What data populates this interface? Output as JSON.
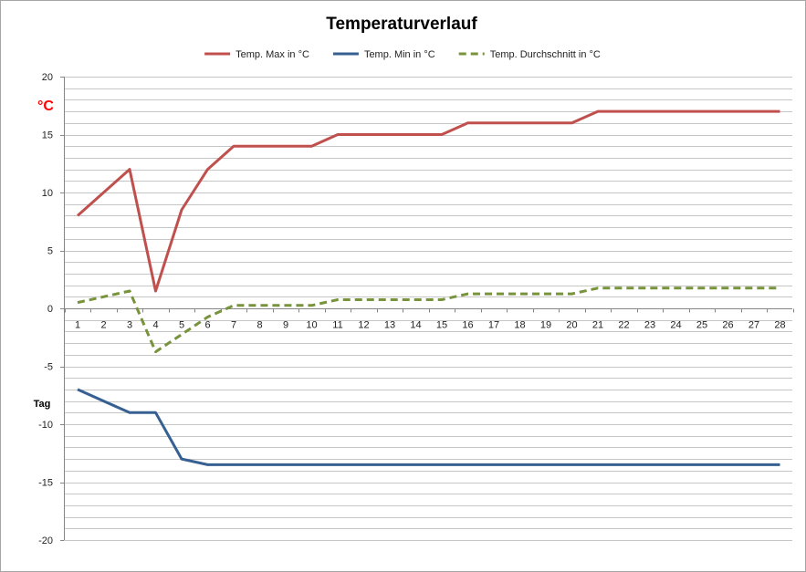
{
  "chart_data": {
    "type": "line",
    "title": "Temperaturverlauf",
    "ylabel": "°C",
    "xlabel": "Tag",
    "ylim": [
      -20,
      20
    ],
    "yticks": [
      20,
      15,
      10,
      5,
      0,
      -5,
      -10,
      -15,
      -20
    ],
    "grid": "horizontal, every 1 unit",
    "legend_position": "top",
    "x": [
      "1",
      "2",
      "3",
      "4",
      "5",
      "6",
      "7",
      "8",
      "9",
      "10",
      "11",
      "12",
      "13",
      "14",
      "15",
      "16",
      "17",
      "18",
      "19",
      "20",
      "21",
      "22",
      "23",
      "24",
      "25",
      "26",
      "27",
      "28"
    ],
    "series": [
      {
        "name": "Temp. Max in °C",
        "color": "#c0504d",
        "dash": "solid",
        "values": [
          8,
          10,
          12,
          1.5,
          8.5,
          12,
          14,
          14,
          14,
          14,
          15,
          15,
          15,
          15,
          15,
          16,
          16,
          16,
          16,
          16,
          17,
          17,
          17,
          17,
          17,
          17,
          17,
          17
        ]
      },
      {
        "name": "Temp. Min in °C",
        "color": "#376092",
        "dash": "solid",
        "values": [
          -7,
          -8,
          -9,
          -9,
          -13,
          -13.5,
          -13.5,
          -13.5,
          -13.5,
          -13.5,
          -13.5,
          -13.5,
          -13.5,
          -13.5,
          -13.5,
          -13.5,
          -13.5,
          -13.5,
          -13.5,
          -13.5,
          -13.5,
          -13.5,
          -13.5,
          -13.5,
          -13.5,
          -13.5,
          -13.5,
          -13.5
        ]
      },
      {
        "name": "Temp. Durchschnitt in °C",
        "color": "#77933c",
        "dash": "dashed",
        "values": [
          0.5,
          1,
          1.5,
          -3.75,
          -2.25,
          -0.75,
          0.25,
          0.25,
          0.25,
          0.25,
          0.75,
          0.75,
          0.75,
          0.75,
          0.75,
          1.25,
          1.25,
          1.25,
          1.25,
          1.25,
          1.75,
          1.75,
          1.75,
          1.75,
          1.75,
          1.75,
          1.75,
          1.75
        ]
      }
    ]
  }
}
